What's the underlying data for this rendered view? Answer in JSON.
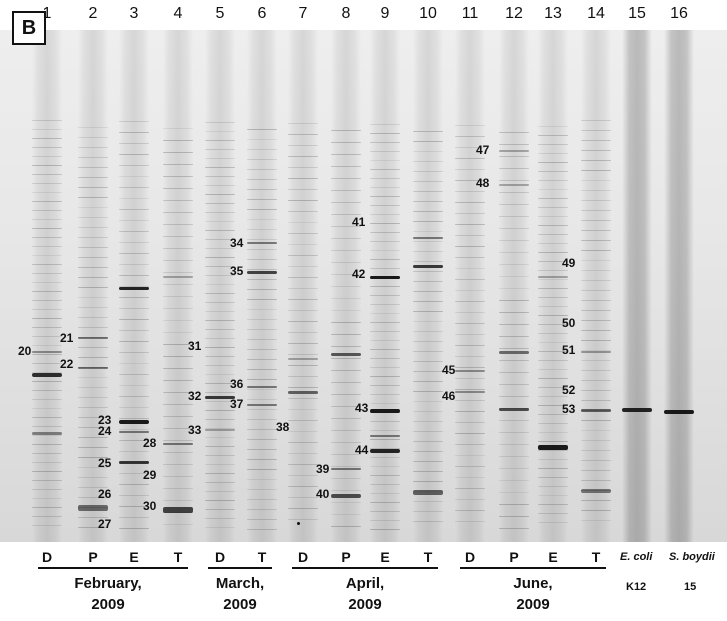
{
  "panel_label": "B",
  "lane_numbers": [
    "1",
    "2",
    "3",
    "4",
    "5",
    "6",
    "7",
    "8",
    "9",
    "10",
    "11",
    "12",
    "13",
    "14",
    "15",
    "16"
  ],
  "lane_letters": [
    "D",
    "P",
    "E",
    "T",
    "D",
    "T",
    "D",
    "P",
    "E",
    "T",
    "D",
    "P",
    "E",
    "T"
  ],
  "groups": [
    {
      "month": "February,",
      "year": "2009"
    },
    {
      "month": "March,",
      "year": "2009"
    },
    {
      "month": "April,",
      "year": "2009"
    },
    {
      "month": "June,",
      "year": "2009"
    }
  ],
  "controls": [
    {
      "name": "E. coli",
      "strain": "K12"
    },
    {
      "name": "S. boydii",
      "strain": "15"
    }
  ],
  "band_labels": [
    "20",
    "21",
    "22",
    "23",
    "24",
    "25",
    "26",
    "27",
    "28",
    "29",
    "30",
    "31",
    "32",
    "33",
    "34",
    "35",
    "36",
    "37",
    "38",
    "39",
    "40",
    "41",
    "42",
    "43",
    "44",
    "45",
    "46",
    "47",
    "48",
    "49",
    "50",
    "51",
    "52",
    "53"
  ]
}
